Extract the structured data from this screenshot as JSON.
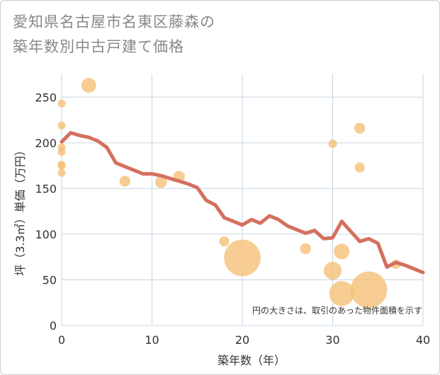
{
  "title_lines": [
    "愛知県名古屋市名東区藤森の",
    "築年数別中古戸建て価格"
  ],
  "chart_data": {
    "type": "scatter",
    "title": "愛知県名古屋市名東区藤森の築年数別中古戸建て価格",
    "xlabel": "築年数（年）",
    "ylabel": "坪（3.3㎡）単価（万円）",
    "xlim": [
      0,
      40
    ],
    "ylim": [
      0,
      275
    ],
    "xticks": [
      0,
      10,
      20,
      30,
      40
    ],
    "yticks": [
      0,
      50,
      100,
      150,
      200,
      250
    ],
    "grid": true,
    "note": "円の大きさは、取引のあった物件面積を示す",
    "colors": {
      "points": "#f5c078",
      "line": "#d4705e",
      "grid": "#c9d6e3"
    },
    "scatter_points": [
      {
        "x": 0,
        "y": 243,
        "size": 1
      },
      {
        "x": 0,
        "y": 219,
        "size": 1
      },
      {
        "x": 0,
        "y": 195,
        "size": 1
      },
      {
        "x": 0,
        "y": 190,
        "size": 1
      },
      {
        "x": 0,
        "y": 176,
        "size": 1
      },
      {
        "x": 0,
        "y": 175,
        "size": 1
      },
      {
        "x": 0,
        "y": 167,
        "size": 1
      },
      {
        "x": 3,
        "y": 263,
        "size": 1.9
      },
      {
        "x": 7,
        "y": 158,
        "size": 1.4
      },
      {
        "x": 11,
        "y": 157,
        "size": 1.5
      },
      {
        "x": 13,
        "y": 163,
        "size": 1.5
      },
      {
        "x": 18,
        "y": 92,
        "size": 1.3
      },
      {
        "x": 20,
        "y": 74,
        "size": 4.7
      },
      {
        "x": 27,
        "y": 84,
        "size": 1.4
      },
      {
        "x": 30,
        "y": 199,
        "size": 1.1
      },
      {
        "x": 30,
        "y": 60,
        "size": 2.3
      },
      {
        "x": 31,
        "y": 81,
        "size": 2.0
      },
      {
        "x": 31,
        "y": 35,
        "size": 3.2
      },
      {
        "x": 33,
        "y": 216,
        "size": 1.4
      },
      {
        "x": 33,
        "y": 173,
        "size": 1.3
      },
      {
        "x": 34,
        "y": 39,
        "size": 4.7
      },
      {
        "x": 37,
        "y": 67,
        "size": 1.2
      }
    ],
    "trend_line": [
      {
        "x": 0,
        "y": 201
      },
      {
        "x": 1,
        "y": 211
      },
      {
        "x": 2,
        "y": 208
      },
      {
        "x": 3,
        "y": 206
      },
      {
        "x": 4,
        "y": 202
      },
      {
        "x": 5,
        "y": 195
      },
      {
        "x": 6,
        "y": 178
      },
      {
        "x": 7,
        "y": 174
      },
      {
        "x": 8,
        "y": 170
      },
      {
        "x": 9,
        "y": 166
      },
      {
        "x": 10,
        "y": 166
      },
      {
        "x": 11,
        "y": 164
      },
      {
        "x": 12,
        "y": 161
      },
      {
        "x": 13,
        "y": 158
      },
      {
        "x": 14,
        "y": 155
      },
      {
        "x": 15,
        "y": 151
      },
      {
        "x": 16,
        "y": 137
      },
      {
        "x": 17,
        "y": 132
      },
      {
        "x": 18,
        "y": 118
      },
      {
        "x": 19,
        "y": 114
      },
      {
        "x": 20,
        "y": 110
      },
      {
        "x": 21,
        "y": 116
      },
      {
        "x": 22,
        "y": 112
      },
      {
        "x": 23,
        "y": 120
      },
      {
        "x": 24,
        "y": 116
      },
      {
        "x": 25,
        "y": 109
      },
      {
        "x": 26,
        "y": 105
      },
      {
        "x": 27,
        "y": 101
      },
      {
        "x": 28,
        "y": 104
      },
      {
        "x": 29,
        "y": 95
      },
      {
        "x": 30,
        "y": 96
      },
      {
        "x": 31,
        "y": 114
      },
      {
        "x": 32,
        "y": 103
      },
      {
        "x": 33,
        "y": 92
      },
      {
        "x": 34,
        "y": 95
      },
      {
        "x": 35,
        "y": 90
      },
      {
        "x": 36,
        "y": 64
      },
      {
        "x": 37,
        "y": 69
      },
      {
        "x": 38,
        "y": 66
      },
      {
        "x": 39,
        "y": 62
      },
      {
        "x": 40,
        "y": 58
      }
    ]
  }
}
